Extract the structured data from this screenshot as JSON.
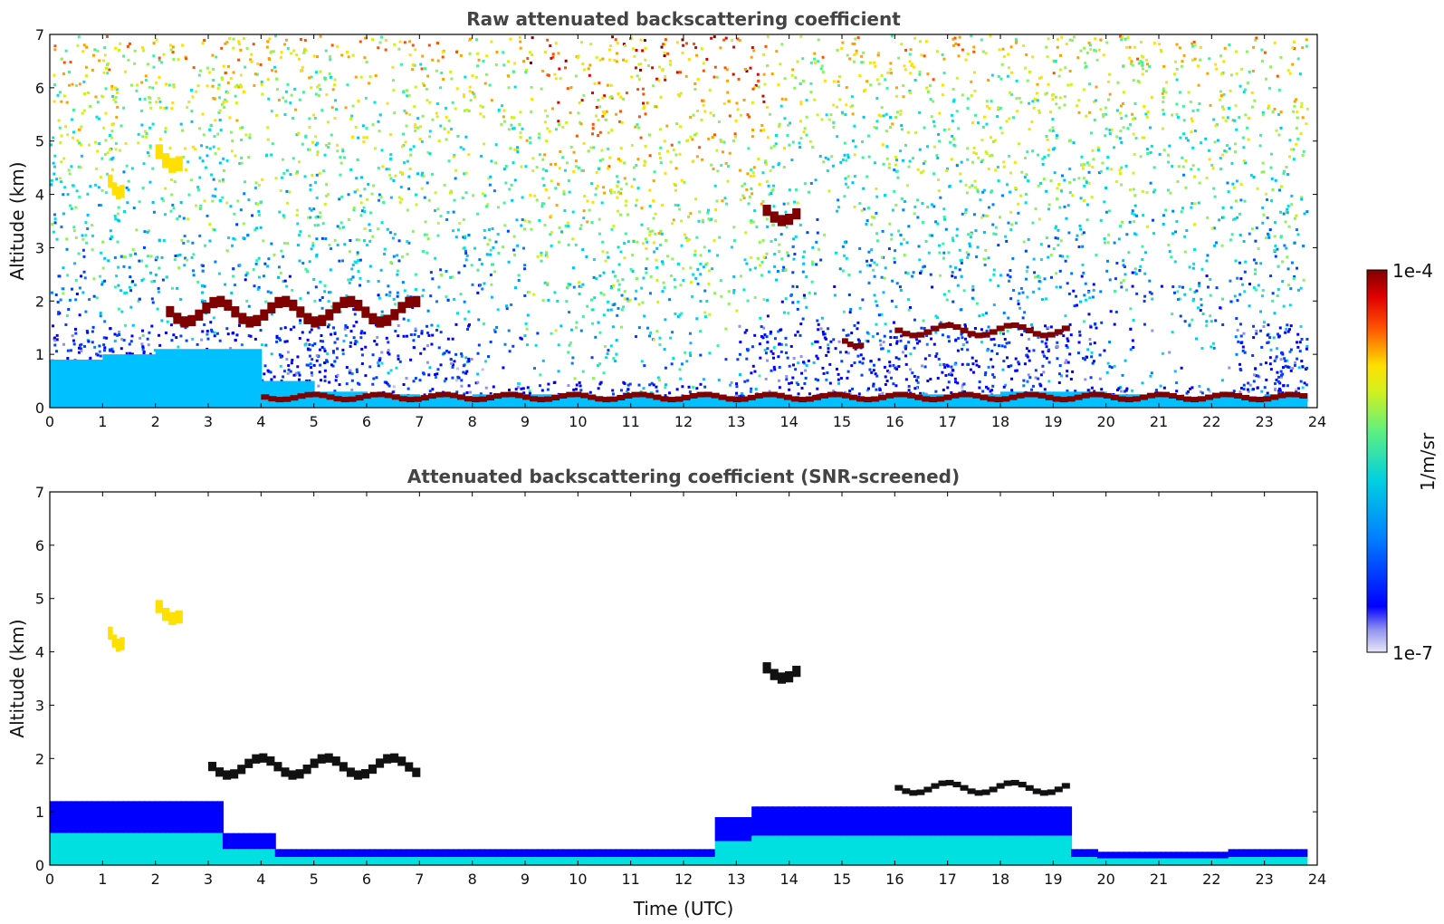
{
  "chart_data": [
    {
      "type": "heatmap",
      "title": "Raw attenuated backscattering coefficient",
      "xlabel": "",
      "ylabel": "Altitude (km)",
      "xlim": [
        0,
        24
      ],
      "ylim": [
        0,
        7
      ],
      "xticks": [
        0,
        1,
        2,
        3,
        4,
        5,
        6,
        7,
        8,
        9,
        10,
        11,
        12,
        13,
        14,
        15,
        16,
        17,
        18,
        19,
        20,
        21,
        22,
        23,
        24
      ],
      "yticks": [
        0,
        1,
        2,
        3,
        4,
        5,
        6,
        7
      ],
      "colorscale": "log",
      "clim": [
        1e-07,
        0.0001
      ],
      "features": [
        {
          "kind": "boundary_layer_top",
          "x": [
            0,
            1,
            2,
            3,
            4,
            5,
            6,
            7,
            8,
            9,
            10,
            11,
            12,
            13,
            14,
            15,
            16,
            17,
            18,
            19,
            20,
            21,
            22,
            23,
            23.8
          ],
          "y": [
            0.9,
            1.0,
            1.1,
            1.1,
            0.5,
            0.3,
            0.25,
            0.2,
            0.25,
            0.25,
            0.2,
            0.2,
            0.2,
            0.2,
            0.2,
            0.2,
            0.25,
            0.25,
            0.3,
            0.3,
            0.25,
            0.2,
            0.2,
            0.25,
            0.25
          ]
        },
        {
          "kind": "cloud_layer",
          "x_range": [
            2.2,
            7.0
          ],
          "altitude": [
            1.5,
            2.1
          ],
          "intensity": "high"
        },
        {
          "kind": "cloud_layer",
          "x_range": [
            16.0,
            19.3
          ],
          "altitude": [
            1.3,
            1.6
          ],
          "intensity": "high"
        },
        {
          "kind": "cloud_layer",
          "x_range": [
            15.0,
            15.4
          ],
          "altitude": [
            1.1,
            1.4
          ],
          "intensity": "high"
        },
        {
          "kind": "cloud_patch",
          "x_range": [
            1.1,
            1.4
          ],
          "altitude": [
            3.9,
            4.6
          ],
          "intensity": "medium"
        },
        {
          "kind": "cloud_patch",
          "x_range": [
            2.0,
            2.5
          ],
          "altitude": [
            4.4,
            5.2
          ],
          "intensity": "medium"
        },
        {
          "kind": "cloud_patch",
          "x_range": [
            13.5,
            14.2
          ],
          "altitude": [
            3.4,
            4.0
          ],
          "intensity": "high"
        },
        {
          "kind": "ground_return",
          "x_range": [
            4.0,
            23.8
          ],
          "altitude": [
            0.1,
            0.3
          ],
          "intensity": "high"
        }
      ]
    },
    {
      "type": "heatmap",
      "title": "Attenuated backscattering coefficient (SNR-screened)",
      "xlabel": "Time (UTC)",
      "ylabel": "Altitude (km)",
      "xlim": [
        0,
        24
      ],
      "ylim": [
        0,
        7
      ],
      "xticks": [
        0,
        1,
        2,
        3,
        4,
        5,
        6,
        7,
        8,
        9,
        10,
        11,
        12,
        13,
        14,
        15,
        16,
        17,
        18,
        19,
        20,
        21,
        22,
        23,
        24
      ],
      "yticks": [
        0,
        1,
        2,
        3,
        4,
        5,
        6,
        7
      ],
      "colorscale": "log",
      "clim": [
        1e-07,
        0.0001
      ],
      "features": [
        {
          "kind": "boundary_layer",
          "x_range": [
            0,
            23.8
          ],
          "altitude": [
            0,
            1.3
          ]
        },
        {
          "kind": "cloud_layer",
          "x_range": [
            3.0,
            7.0
          ],
          "altitude": [
            1.6,
            2.1
          ],
          "intensity": "saturated"
        },
        {
          "kind": "cloud_layer",
          "x_range": [
            16.0,
            19.3
          ],
          "altitude": [
            1.3,
            1.6
          ],
          "intensity": "saturated"
        },
        {
          "kind": "cloud_patch",
          "x_range": [
            1.1,
            1.4
          ],
          "altitude": [
            4.0,
            4.7
          ],
          "intensity": "medium"
        },
        {
          "kind": "cloud_patch",
          "x_range": [
            2.0,
            2.5
          ],
          "altitude": [
            4.5,
            5.2
          ],
          "intensity": "medium"
        },
        {
          "kind": "cloud_patch",
          "x_range": [
            13.5,
            14.2
          ],
          "altitude": [
            3.4,
            4.0
          ],
          "intensity": "saturated"
        }
      ]
    }
  ],
  "colorbar": {
    "label": "1/m/sr",
    "max_label": "1e-4",
    "min_label": "1e-7",
    "colors": [
      "#e8e8f8",
      "#c0c0f0",
      "#9090f0",
      "#0000ff",
      "#0040ff",
      "#0080ff",
      "#00c0ff",
      "#00e0e0",
      "#40f0a0",
      "#90f060",
      "#d0f020",
      "#ffe000",
      "#ffa000",
      "#ff5000",
      "#e00000",
      "#800000"
    ]
  }
}
